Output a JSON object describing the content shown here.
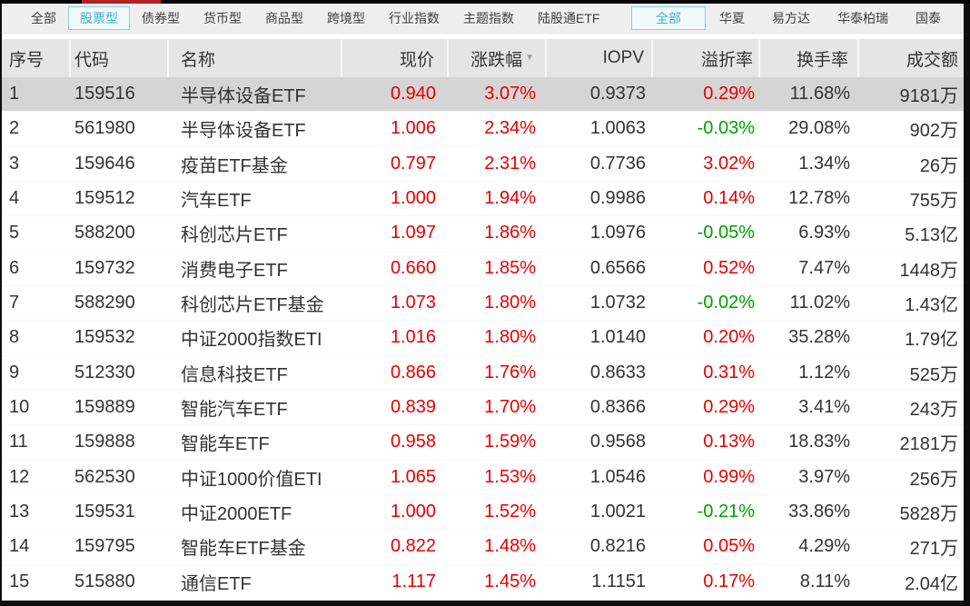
{
  "colors": {
    "up_red": "#e60000",
    "down_green": "#00a000",
    "accent_blue": "#3fb1cd",
    "selected_row_bg": "#d5d5d5",
    "header_bg": "#e5e5e5",
    "top_indicator_red": "#b32225"
  },
  "tabs_category": {
    "items": [
      {
        "label": "全部",
        "selected": false
      },
      {
        "label": "股票型",
        "selected": true
      },
      {
        "label": "债券型",
        "selected": false
      },
      {
        "label": "货币型",
        "selected": false
      },
      {
        "label": "商品型",
        "selected": false
      },
      {
        "label": "跨境型",
        "selected": false
      },
      {
        "label": "行业指数",
        "selected": false
      },
      {
        "label": "主题指数",
        "selected": false
      },
      {
        "label": "陆股通ETF",
        "selected": false
      }
    ]
  },
  "tabs_fund_company": {
    "items": [
      {
        "label": "全部",
        "selected": true
      },
      {
        "label": "华夏",
        "selected": false
      },
      {
        "label": "易方达",
        "selected": false
      },
      {
        "label": "华泰柏瑞",
        "selected": false
      },
      {
        "label": "国泰",
        "selected": false
      }
    ]
  },
  "table": {
    "sort": {
      "column": "涨跌幅",
      "direction": "desc"
    },
    "columns": [
      {
        "key": "index",
        "label": "序号",
        "align": "left",
        "color": "dark"
      },
      {
        "key": "code",
        "label": "代码",
        "align": "left",
        "color": "dark"
      },
      {
        "key": "name",
        "label": "名称",
        "align": "left",
        "color": "dark"
      },
      {
        "key": "price",
        "label": "现价",
        "align": "right",
        "color": "red"
      },
      {
        "key": "change",
        "label": "涨跌幅",
        "align": "right",
        "color": "red",
        "sorted": "desc"
      },
      {
        "key": "iopv",
        "label": "IOPV",
        "align": "right",
        "color": "dark"
      },
      {
        "key": "premium",
        "label": "溢折率",
        "align": "right",
        "color": "sign"
      },
      {
        "key": "turnover",
        "label": "换手率",
        "align": "right",
        "color": "dark"
      },
      {
        "key": "amount",
        "label": "成交额",
        "align": "right",
        "color": "dark"
      }
    ],
    "rows": [
      {
        "selected": true,
        "index": "1",
        "code": "159516",
        "name": "半导体设备ETF",
        "price": "0.940",
        "change": "3.07%",
        "iopv": "0.9373",
        "premium": "0.29%",
        "turnover": "11.68%",
        "amount": "9181万"
      },
      {
        "selected": false,
        "index": "2",
        "code": "561980",
        "name": "半导体设备ETF",
        "price": "1.006",
        "change": "2.34%",
        "iopv": "1.0063",
        "premium": "-0.03%",
        "turnover": "29.08%",
        "amount": "902万"
      },
      {
        "selected": false,
        "index": "3",
        "code": "159646",
        "name": "疫苗ETF基金",
        "price": "0.797",
        "change": "2.31%",
        "iopv": "0.7736",
        "premium": "3.02%",
        "turnover": "1.34%",
        "amount": "26万"
      },
      {
        "selected": false,
        "index": "4",
        "code": "159512",
        "name": "汽车ETF",
        "price": "1.000",
        "change": "1.94%",
        "iopv": "0.9986",
        "premium": "0.14%",
        "turnover": "12.78%",
        "amount": "755万"
      },
      {
        "selected": false,
        "index": "5",
        "code": "588200",
        "name": "科创芯片ETF",
        "price": "1.097",
        "change": "1.86%",
        "iopv": "1.0976",
        "premium": "-0.05%",
        "turnover": "6.93%",
        "amount": "5.13亿"
      },
      {
        "selected": false,
        "index": "6",
        "code": "159732",
        "name": "消费电子ETF",
        "price": "0.660",
        "change": "1.85%",
        "iopv": "0.6566",
        "premium": "0.52%",
        "turnover": "7.47%",
        "amount": "1448万"
      },
      {
        "selected": false,
        "index": "7",
        "code": "588290",
        "name": "科创芯片ETF基金",
        "price": "1.073",
        "change": "1.80%",
        "iopv": "1.0732",
        "premium": "-0.02%",
        "turnover": "11.02%",
        "amount": "1.43亿"
      },
      {
        "selected": false,
        "index": "8",
        "code": "159532",
        "name": "中证2000指数ETI",
        "price": "1.016",
        "change": "1.80%",
        "iopv": "1.0140",
        "premium": "0.20%",
        "turnover": "35.28%",
        "amount": "1.79亿"
      },
      {
        "selected": false,
        "index": "9",
        "code": "512330",
        "name": "信息科技ETF",
        "price": "0.866",
        "change": "1.76%",
        "iopv": "0.8633",
        "premium": "0.31%",
        "turnover": "1.12%",
        "amount": "525万"
      },
      {
        "selected": false,
        "index": "10",
        "code": "159889",
        "name": "智能汽车ETF",
        "price": "0.839",
        "change": "1.70%",
        "iopv": "0.8366",
        "premium": "0.29%",
        "turnover": "3.41%",
        "amount": "243万"
      },
      {
        "selected": false,
        "index": "11",
        "code": "159888",
        "name": "智能车ETF",
        "price": "0.958",
        "change": "1.59%",
        "iopv": "0.9568",
        "premium": "0.13%",
        "turnover": "18.83%",
        "amount": "2181万"
      },
      {
        "selected": false,
        "index": "12",
        "code": "562530",
        "name": "中证1000价值ETI",
        "price": "1.065",
        "change": "1.53%",
        "iopv": "1.0546",
        "premium": "0.99%",
        "turnover": "3.97%",
        "amount": "256万"
      },
      {
        "selected": false,
        "index": "13",
        "code": "159531",
        "name": "中证2000ETF",
        "price": "1.000",
        "change": "1.52%",
        "iopv": "1.0021",
        "premium": "-0.21%",
        "turnover": "33.86%",
        "amount": "5828万"
      },
      {
        "selected": false,
        "index": "14",
        "code": "159795",
        "name": "智能车ETF基金",
        "price": "0.822",
        "change": "1.48%",
        "iopv": "0.8216",
        "premium": "0.05%",
        "turnover": "4.29%",
        "amount": "271万"
      },
      {
        "selected": false,
        "index": "15",
        "code": "515880",
        "name": "通信ETF",
        "price": "1.117",
        "change": "1.45%",
        "iopv": "1.1151",
        "premium": "0.17%",
        "turnover": "8.11%",
        "amount": "2.04亿"
      }
    ]
  }
}
